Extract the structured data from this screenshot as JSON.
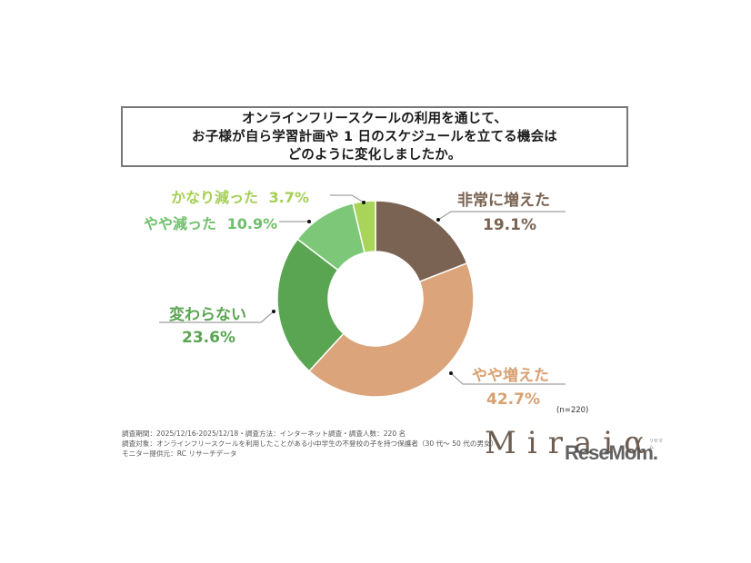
{
  "title": {
    "lines": [
      "オンラインフリースクールの利用を通じて、",
      "お子様が自ら学習計画や 1 日のスケジュールを立てる機会は",
      "どのように変化しましたか。"
    ]
  },
  "chart_data": {
    "type": "pie",
    "subtype": "donut",
    "title": "オンラインフリースクールの利用を通じて、お子様が自ら学習計画や 1 日のスケジュールを立てる機会はどのように変化しましたか。",
    "categories": [
      "非常に増えた",
      "やや増えた",
      "変わらない",
      "やや減った",
      "かなり減った"
    ],
    "values": [
      19.1,
      42.7,
      23.6,
      10.9,
      3.7
    ],
    "colors": [
      "#7a6352",
      "#dba47a",
      "#5aa552",
      "#7cc878",
      "#a9d45a"
    ],
    "unit": "%",
    "sample_size": "n=220",
    "start_angle": "12 o'clock, clockwise",
    "legend": "none (direct labels)"
  },
  "labels": {
    "very_increased": {
      "name": "非常に増えた",
      "value": "19.1%",
      "color": "#7a6352"
    },
    "slightly_increased": {
      "name": "やや増えた",
      "value": "42.7%",
      "color": "#d9a070"
    },
    "unchanged": {
      "name": "変わらない",
      "value": "23.6%",
      "color": "#5aa552"
    },
    "slightly_decreased": {
      "name": "やや減った",
      "value": "10.9%",
      "color": "#6fc06c"
    },
    "much_decreased": {
      "name": "かなり減った",
      "value": "3.7%",
      "color": "#a5cf55"
    }
  },
  "sample": "(n=220)",
  "footer": {
    "lines": [
      "調査期間：2025/12/16-2025/12/18・調査方法：インターネット調査・調査人数：220 名",
      "調査対象：オンラインフリースクールを利用したことがある小中学生の不登校の子を持つ保護者（30 代～ 50 代の男女）",
      "モニター提供元：RC リサーチデータ"
    ]
  },
  "logo": {
    "brand": "Miraiα",
    "watermark": "ReseMom.",
    "watermark_kana": "リセマム"
  }
}
